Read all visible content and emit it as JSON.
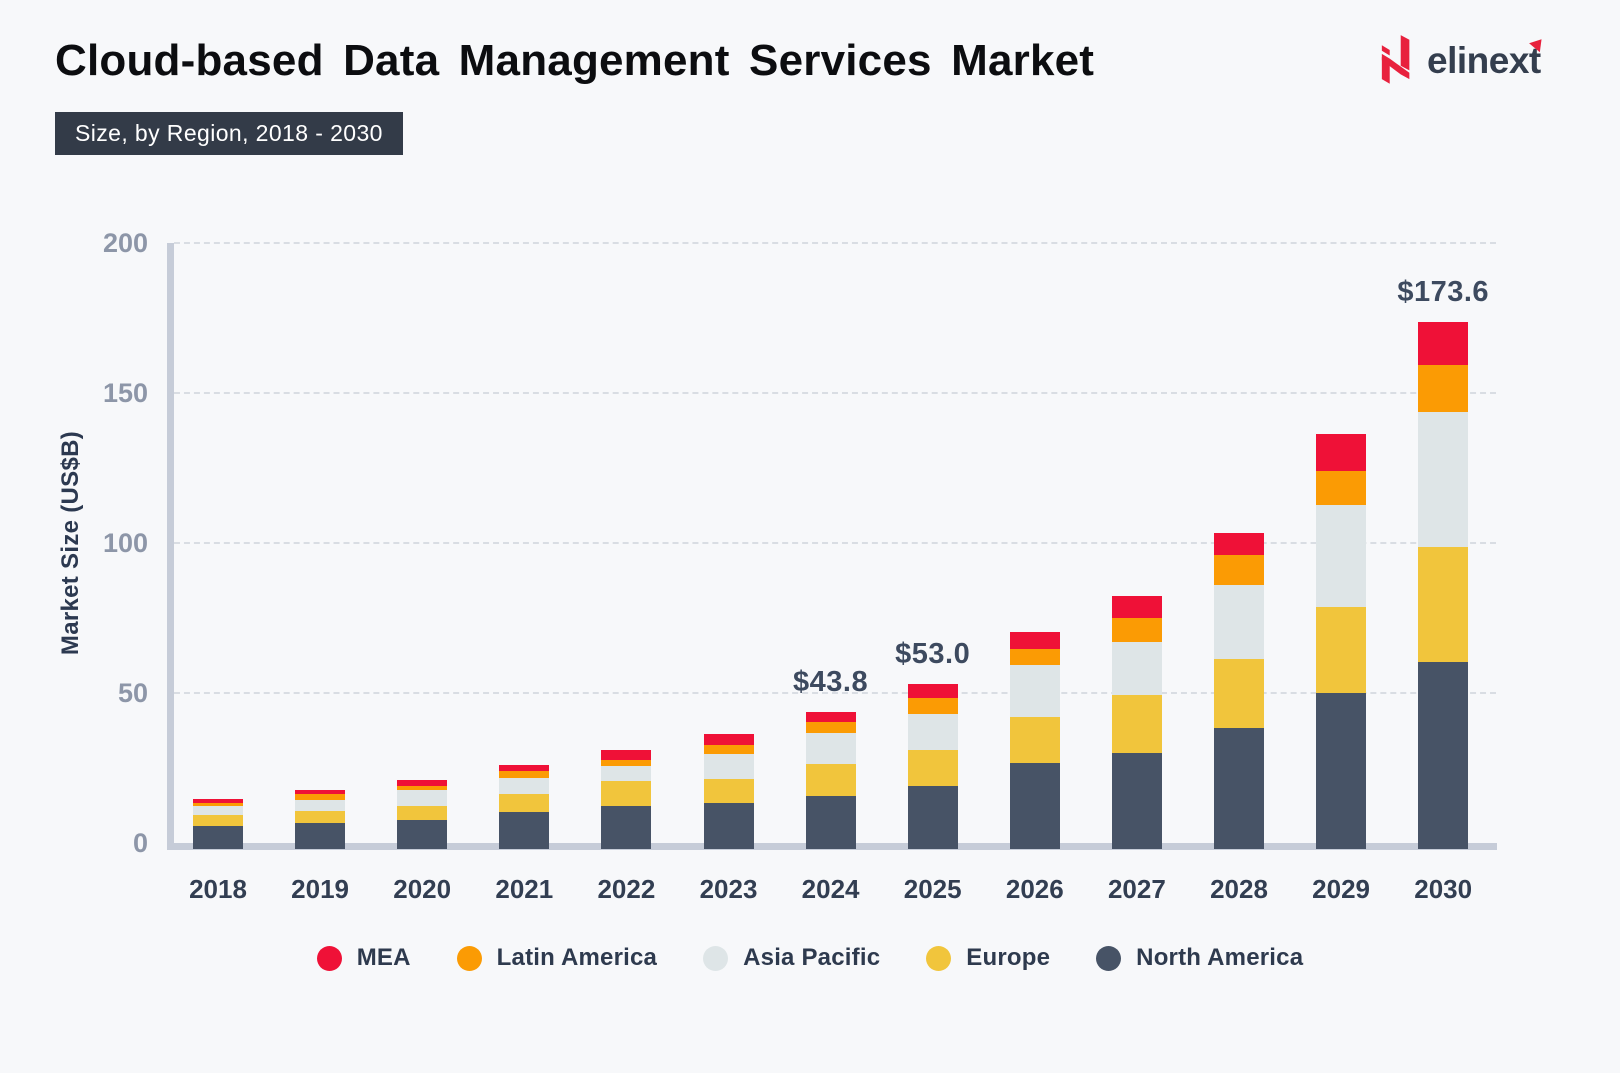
{
  "header": {
    "title": "Cloud-based Data Management Services Market",
    "subtitle_badge": "Size, by Region, 2018 - 2030",
    "logo": {
      "brand": "elinext",
      "mark": "elinext-n-mark",
      "accent_color": "#E8213D"
    }
  },
  "chart_data": {
    "type": "bar",
    "stacked": true,
    "title": "Cloud-based Data Management Services Market Size, by Region, 2018 - 2030",
    "xlabel": "",
    "ylabel": "Market Size (US$B)",
    "ylim": [
      0,
      200
    ],
    "yticks": [
      0,
      50,
      100,
      150,
      200
    ],
    "grid": "horizontal-dotted",
    "categories": [
      "2018",
      "2019",
      "2020",
      "2021",
      "2022",
      "2023",
      "2024",
      "2025",
      "2026",
      "2027",
      "2028",
      "2029",
      "2030"
    ],
    "series": [
      {
        "name": "North America",
        "color": "#475366",
        "values": [
          5.8,
          6.6,
          7.8,
          10.2,
          12.2,
          13.5,
          15.7,
          18.9,
          26.6,
          30.1,
          38.4,
          49.9,
          60.3
        ]
      },
      {
        "name": "Europe",
        "color": "#F1C53C",
        "values": [
          3.4,
          4.1,
          4.4,
          6.2,
          8.6,
          8.0,
          10.8,
          12.1,
          15.5,
          19.1,
          22.8,
          28.7,
          38.5
        ]
      },
      {
        "name": "Asia Pacific",
        "color": "#DEE5E7",
        "values": [
          3.0,
          3.7,
          5.5,
          5.3,
          4.8,
          8.2,
          10.2,
          12.0,
          17.1,
          17.9,
          24.9,
          34.0,
          45.0
        ]
      },
      {
        "name": "Latin America",
        "color": "#FB9B04",
        "values": [
          1.3,
          1.9,
          1.2,
          2.4,
          2.2,
          3.0,
          3.6,
          5.5,
          5.5,
          7.9,
          9.9,
          11.3,
          15.5
        ]
      },
      {
        "name": "MEA",
        "color": "#EF1137",
        "values": [
          1.1,
          1.4,
          2.1,
          1.9,
          3.2,
          3.5,
          3.5,
          4.5,
          5.7,
          7.4,
          7.3,
          12.5,
          14.3
        ]
      }
    ],
    "annotations": [
      {
        "category": "2024",
        "label": "$43.8"
      },
      {
        "category": "2025",
        "label": "$53.0"
      },
      {
        "category": "2030",
        "label": "$173.6"
      }
    ],
    "legend_order": [
      "MEA",
      "Latin America",
      "Asia Pacific",
      "Europe",
      "North America"
    ],
    "legend_position": "bottom-center"
  }
}
